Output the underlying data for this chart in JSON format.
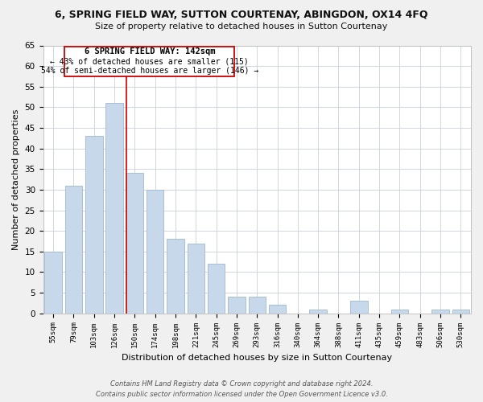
{
  "title": "6, SPRING FIELD WAY, SUTTON COURTENAY, ABINGDON, OX14 4FQ",
  "subtitle": "Size of property relative to detached houses in Sutton Courtenay",
  "xlabel": "Distribution of detached houses by size in Sutton Courtenay",
  "ylabel": "Number of detached properties",
  "bar_labels": [
    "55sqm",
    "79sqm",
    "103sqm",
    "126sqm",
    "150sqm",
    "174sqm",
    "198sqm",
    "221sqm",
    "245sqm",
    "269sqm",
    "293sqm",
    "316sqm",
    "340sqm",
    "364sqm",
    "388sqm",
    "411sqm",
    "435sqm",
    "459sqm",
    "483sqm",
    "506sqm",
    "530sqm"
  ],
  "bar_values": [
    15,
    31,
    43,
    51,
    34,
    30,
    18,
    17,
    12,
    4,
    4,
    2,
    0,
    1,
    0,
    3,
    0,
    1,
    0,
    1,
    1
  ],
  "bar_color": "#c8d8eb",
  "bar_edge_color": "#a0b8d0",
  "grid_color": "#c8d0da",
  "marker_label": "6 SPRING FIELD WAY: 142sqm",
  "annotation_line1": "← 43% of detached houses are smaller (115)",
  "annotation_line2": "54% of semi-detached houses are larger (146) →",
  "annotation_box_color": "#ffffff",
  "annotation_box_edge": "#cc0000",
  "marker_line_color": "#cc0000",
  "ylim_max": 65,
  "yticks": [
    0,
    5,
    10,
    15,
    20,
    25,
    30,
    35,
    40,
    45,
    50,
    55,
    60,
    65
  ],
  "footer_line1": "Contains HM Land Registry data © Crown copyright and database right 2024.",
  "footer_line2": "Contains public sector information licensed under the Open Government Licence v3.0.",
  "bg_color": "#f0f0f0",
  "plot_bg": "#ffffff"
}
